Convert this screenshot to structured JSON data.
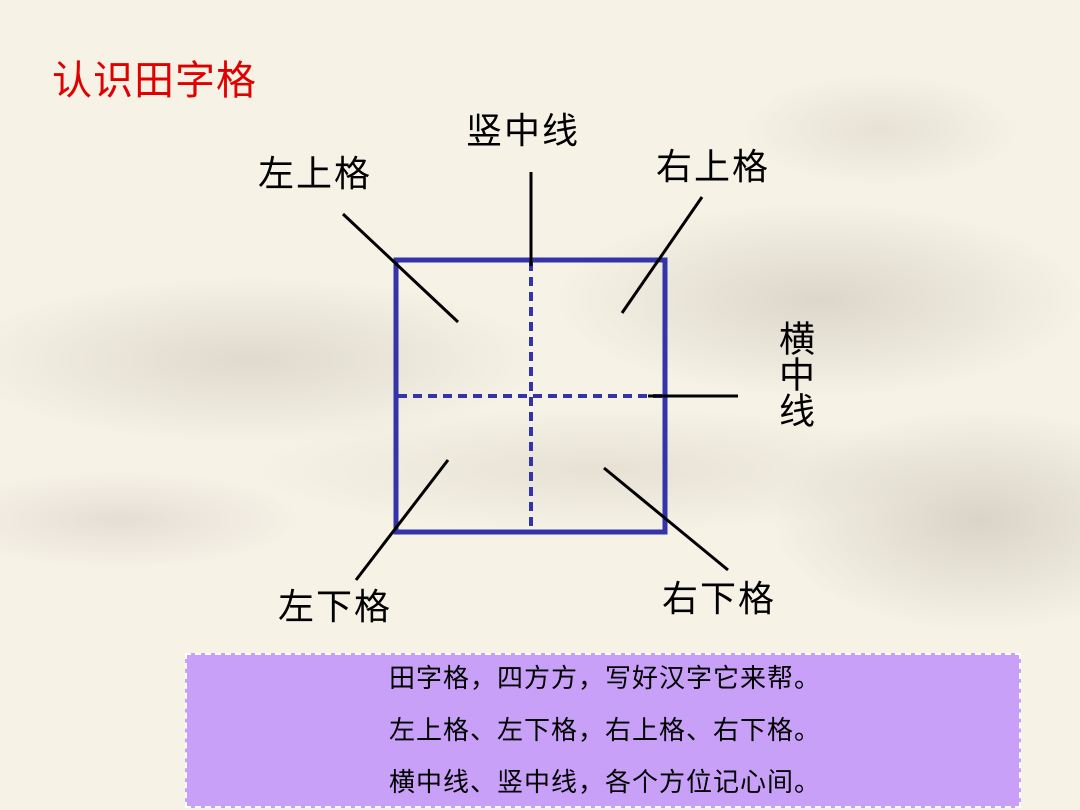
{
  "title": "认识田字格",
  "labels": {
    "vertical_center_line": "竖中线",
    "top_left": "左上格",
    "top_right": "右上格",
    "horizontal_center_line": "横中线",
    "bottom_left": "左下格",
    "bottom_right": "右下格"
  },
  "rhyme": [
    "田字格，四方方，写好汉字它来帮。",
    "左上格、左下格，右上格、右下格。",
    "横中线、竖中线，各个方位记心间。"
  ],
  "colors": {
    "title": "#e00000",
    "grid": "#3333aa",
    "rhyme_box": "#c8a0f8"
  }
}
